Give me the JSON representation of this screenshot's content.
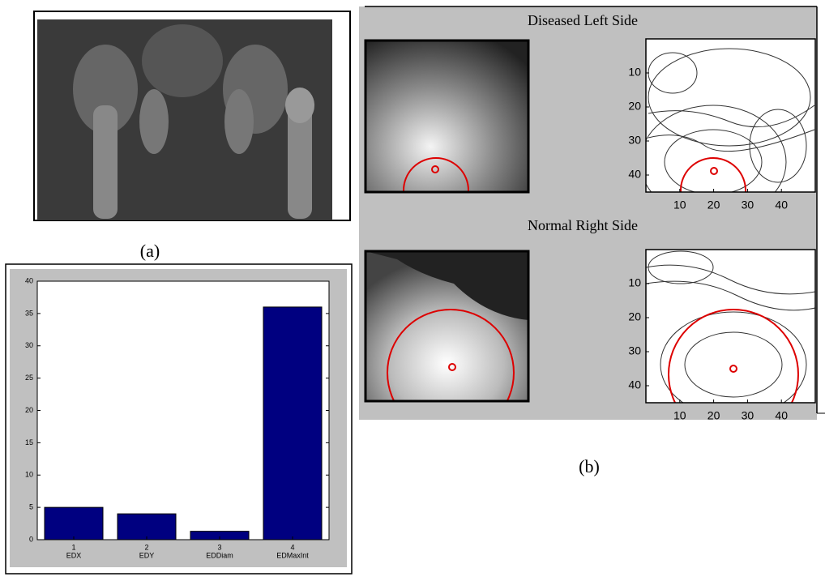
{
  "panel_a_label": "(a)",
  "panel_b_label": "(b)",
  "chart_data": {
    "type": "bar",
    "x": [
      1,
      2,
      3,
      4
    ],
    "categories": [
      "EDX",
      "EDY",
      "EDDiam",
      "EDMaxInt"
    ],
    "values": [
      5,
      4,
      1.3,
      36
    ],
    "color": "#000080",
    "xlim": [
      0.5,
      4.5
    ],
    "ylim": [
      0,
      40
    ],
    "yticks": [
      0,
      5,
      10,
      15,
      20,
      25,
      30,
      35,
      40
    ]
  },
  "panel_b": {
    "titles": [
      "Diseased Left Side",
      "Normal Right Side"
    ],
    "xlim": [
      0,
      50
    ],
    "ylim": [
      0,
      45
    ],
    "xticks": [
      10,
      20,
      30,
      40
    ],
    "yticks": [
      10,
      20,
      30,
      40
    ]
  }
}
